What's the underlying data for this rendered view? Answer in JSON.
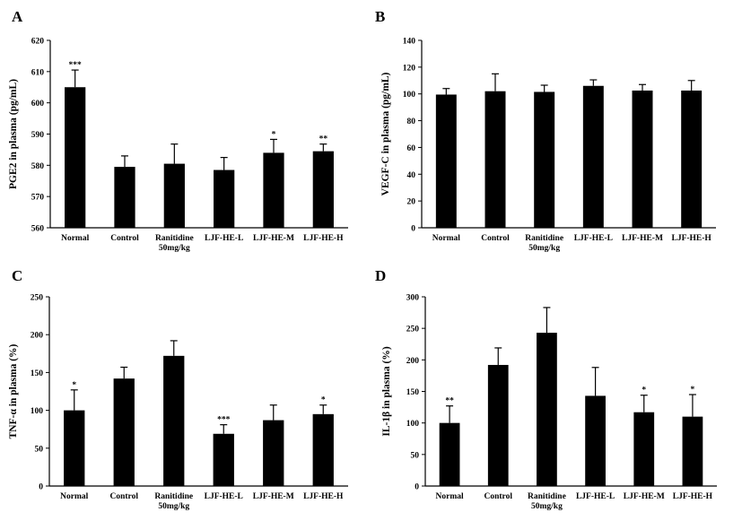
{
  "chart_data": [
    {
      "panel": "A",
      "type": "bar",
      "categories": [
        [
          "Normal"
        ],
        [
          "Control"
        ],
        [
          "Ranitidine",
          "50mg/kg"
        ],
        [
          "LJF-HE-L"
        ],
        [
          "LJF-HE-M"
        ],
        [
          "LJF-HE-H"
        ]
      ],
      "values": [
        605.0,
        579.5,
        580.5,
        578.5,
        584.0,
        584.5
      ],
      "errors": [
        5.5,
        3.5,
        6.3,
        4.0,
        4.3,
        2.3
      ],
      "significance": [
        "***",
        "",
        "",
        "",
        "*",
        "**"
      ],
      "ylabel": "PGE2 in plasma (pg/mL)",
      "ylim": [
        560,
        620
      ],
      "yticks": [
        560,
        570,
        580,
        590,
        600,
        610,
        620
      ],
      "grid": false,
      "legend": "none"
    },
    {
      "panel": "B",
      "type": "bar",
      "categories": [
        [
          "Normal"
        ],
        [
          "Control"
        ],
        [
          "Ranitidine",
          "50mg/kg"
        ],
        [
          "LJF-HE-L"
        ],
        [
          "LJF-HE-M"
        ],
        [
          "LJF-HE-H"
        ]
      ],
      "values": [
        99.5,
        102.0,
        101.5,
        106.0,
        102.5,
        102.5
      ],
      "errors": [
        4.5,
        13.0,
        5.0,
        4.5,
        4.5,
        7.5
      ],
      "significance": [
        "",
        "",
        "",
        "",
        "",
        ""
      ],
      "ylabel": "VEGF-C in plasma (pg/mL)",
      "ylim": [
        0,
        140
      ],
      "yticks": [
        0,
        20,
        40,
        60,
        80,
        100,
        120,
        140
      ],
      "grid": false,
      "legend": "none"
    },
    {
      "panel": "C",
      "type": "bar",
      "categories": [
        [
          "Normal"
        ],
        [
          "Control"
        ],
        [
          "Ranitidine",
          "50mg/kg"
        ],
        [
          "LJF-HE-L"
        ],
        [
          "LJF-HE-M"
        ],
        [
          "LJF-HE-H"
        ]
      ],
      "values": [
        100,
        142,
        172,
        69,
        87,
        95
      ],
      "errors": [
        27,
        15,
        20,
        12,
        20,
        12
      ],
      "significance": [
        "*",
        "",
        "",
        "***",
        "",
        "*"
      ],
      "ylabel": "TNF-α in plasma (%)",
      "ylim": [
        0,
        250
      ],
      "yticks": [
        0,
        50,
        100,
        150,
        200,
        250
      ],
      "grid": false,
      "legend": "none"
    },
    {
      "panel": "D",
      "type": "bar",
      "categories": [
        [
          "Normal"
        ],
        [
          "Control"
        ],
        [
          "Ranitidine",
          "50mg/kg"
        ],
        [
          "LJF-HE-L"
        ],
        [
          "LJF-HE-M"
        ],
        [
          "LJF-HE-H"
        ]
      ],
      "values": [
        100,
        192,
        243,
        143,
        117,
        110
      ],
      "errors": [
        27,
        27,
        40,
        45,
        27,
        35
      ],
      "significance": [
        "**",
        "",
        "",
        "",
        "*",
        "*"
      ],
      "ylabel": "IL-1β in plasma (%)",
      "ylim": [
        0,
        300
      ],
      "yticks": [
        0,
        50,
        100,
        150,
        200,
        250,
        300
      ],
      "grid": false,
      "legend": "none"
    }
  ],
  "colors": {
    "bar": "#000000",
    "axis": "#000000",
    "background": "#ffffff"
  }
}
